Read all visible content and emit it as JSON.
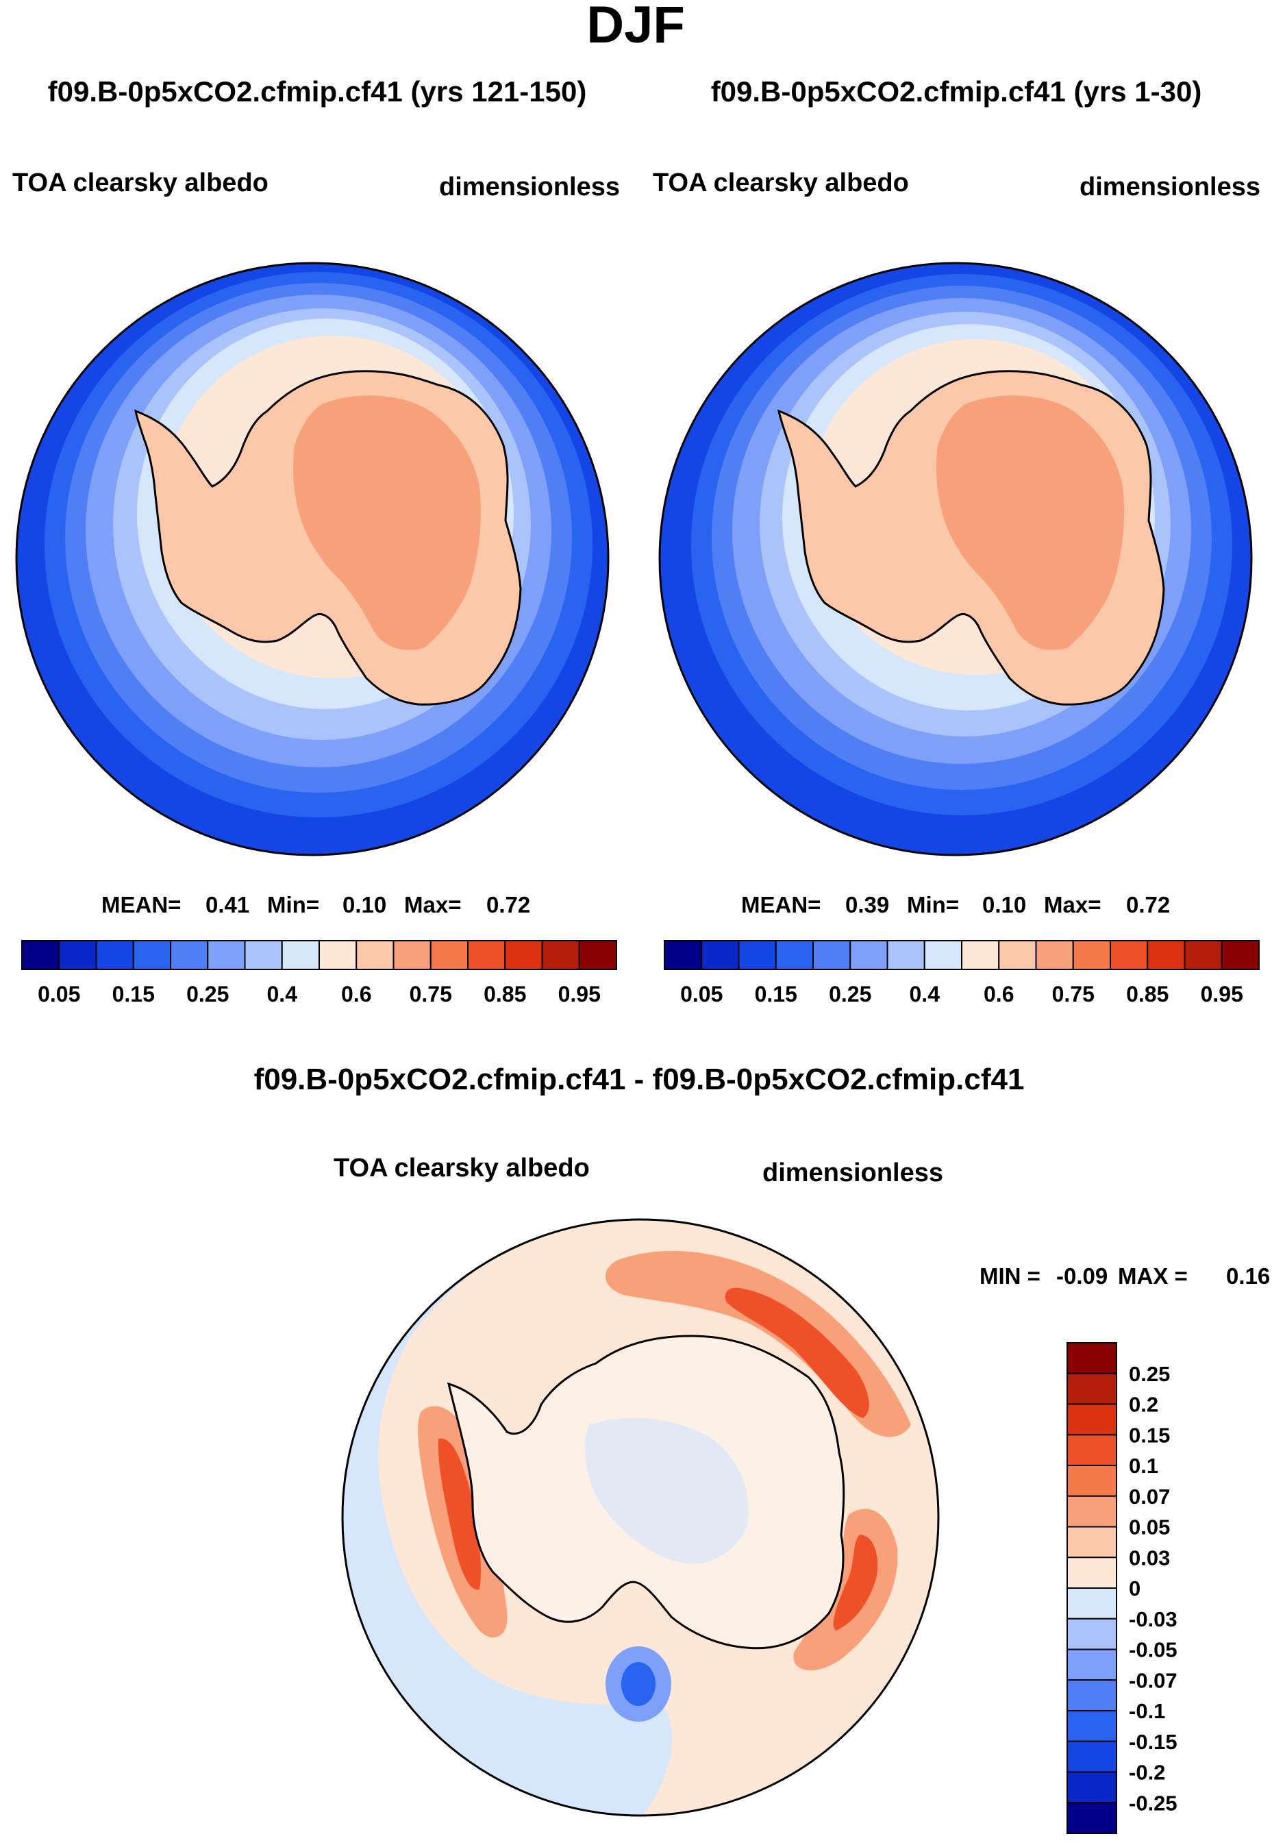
{
  "page_title": "DJF",
  "colors": {
    "coastline": "#000000",
    "abs_levels": [
      "#00008b",
      "#0a28c8",
      "#1446e6",
      "#2864f0",
      "#507ef5",
      "#7ea0f8",
      "#aac3fa",
      "#d6e6fb",
      "#fde7d6",
      "#fbc8aa",
      "#f8a07a",
      "#f57a4a",
      "#ee5028",
      "#dc3210",
      "#b41e0a",
      "#8b0000"
    ],
    "diff_levels": [
      "#00008b",
      "#0a28c8",
      "#1446e6",
      "#2864f0",
      "#507ef5",
      "#7ea0f8",
      "#aac3fa",
      "#d6e6fb",
      "#fde7d6",
      "#fbc8aa",
      "#f8a07a",
      "#f57a4a",
      "#ee5028",
      "#dc3210",
      "#b41e0a",
      "#8b0000"
    ]
  },
  "chart_data": [
    {
      "type": "heatmap",
      "projection": "south-polar-stereographic",
      "case_title": "f09.B-0p5xCO2.cfmip.cf41 (yrs 121-150)",
      "variable": "TOA clearsky albedo",
      "units": "dimensionless",
      "stats": {
        "mean_label": "MEAN=",
        "mean": "0.41",
        "min_label": "Min=",
        "min": "0.10",
        "max_label": "Max=",
        "max": "0.72"
      },
      "colorbar": {
        "orientation": "horizontal",
        "levels": [
          0.05,
          0.1,
          0.15,
          0.2,
          0.25,
          0.3,
          0.4,
          0.5,
          0.6,
          0.7,
          0.75,
          0.8,
          0.85,
          0.9,
          0.95
        ],
        "tick_labels": [
          "0.05",
          "0.15",
          "0.25",
          "0.4",
          "0.6",
          "0.75",
          "0.85",
          "0.95"
        ]
      },
      "regions": {
        "open_ocean": 0.1,
        "continent_interior": 0.72,
        "continent_edge": 0.65,
        "sea_ice_edge": 0.55
      }
    },
    {
      "type": "heatmap",
      "projection": "south-polar-stereographic",
      "case_title": "f09.B-0p5xCO2.cfmip.cf41 (yrs 1-30)",
      "variable": "TOA clearsky albedo",
      "units": "dimensionless",
      "stats": {
        "mean_label": "MEAN=",
        "mean": "0.39",
        "min_label": "Min=",
        "min": "0.10",
        "max_label": "Max=",
        "max": "0.72"
      },
      "colorbar": {
        "orientation": "horizontal",
        "levels": [
          0.05,
          0.1,
          0.15,
          0.2,
          0.25,
          0.3,
          0.4,
          0.5,
          0.6,
          0.7,
          0.75,
          0.8,
          0.85,
          0.9,
          0.95
        ],
        "tick_labels": [
          "0.05",
          "0.15",
          "0.25",
          "0.4",
          "0.6",
          "0.75",
          "0.85",
          "0.95"
        ]
      },
      "regions": {
        "open_ocean": 0.1,
        "continent_interior": 0.72,
        "continent_edge": 0.65,
        "sea_ice_edge": 0.5
      }
    },
    {
      "type": "heatmap",
      "projection": "south-polar-stereographic",
      "case_title": "f09.B-0p5xCO2.cfmip.cf41 - f09.B-0p5xCO2.cfmip.cf41",
      "variable": "TOA clearsky albedo",
      "units": "dimensionless",
      "stats": {
        "min_label": "MIN =",
        "min": "-0.09",
        "max_label": "MAX =",
        "max": "0.16"
      },
      "colorbar": {
        "orientation": "vertical",
        "levels": [
          -0.25,
          -0.2,
          -0.15,
          -0.1,
          -0.07,
          -0.05,
          -0.03,
          0,
          0.03,
          0.05,
          0.07,
          0.1,
          0.15,
          0.2,
          0.25
        ],
        "tick_labels": [
          "0.25",
          "0.2",
          "0.15",
          "0.1",
          "0.07",
          "0.05",
          "0.03",
          "0",
          "-0.03",
          "-0.05",
          "-0.07",
          "-0.1",
          "-0.15",
          "-0.2",
          "-0.25"
        ]
      },
      "regions": {
        "background": 0.01,
        "continent": 0.0,
        "ice_edge_bands": 0.09,
        "weddell_anomaly": -0.09
      }
    }
  ]
}
